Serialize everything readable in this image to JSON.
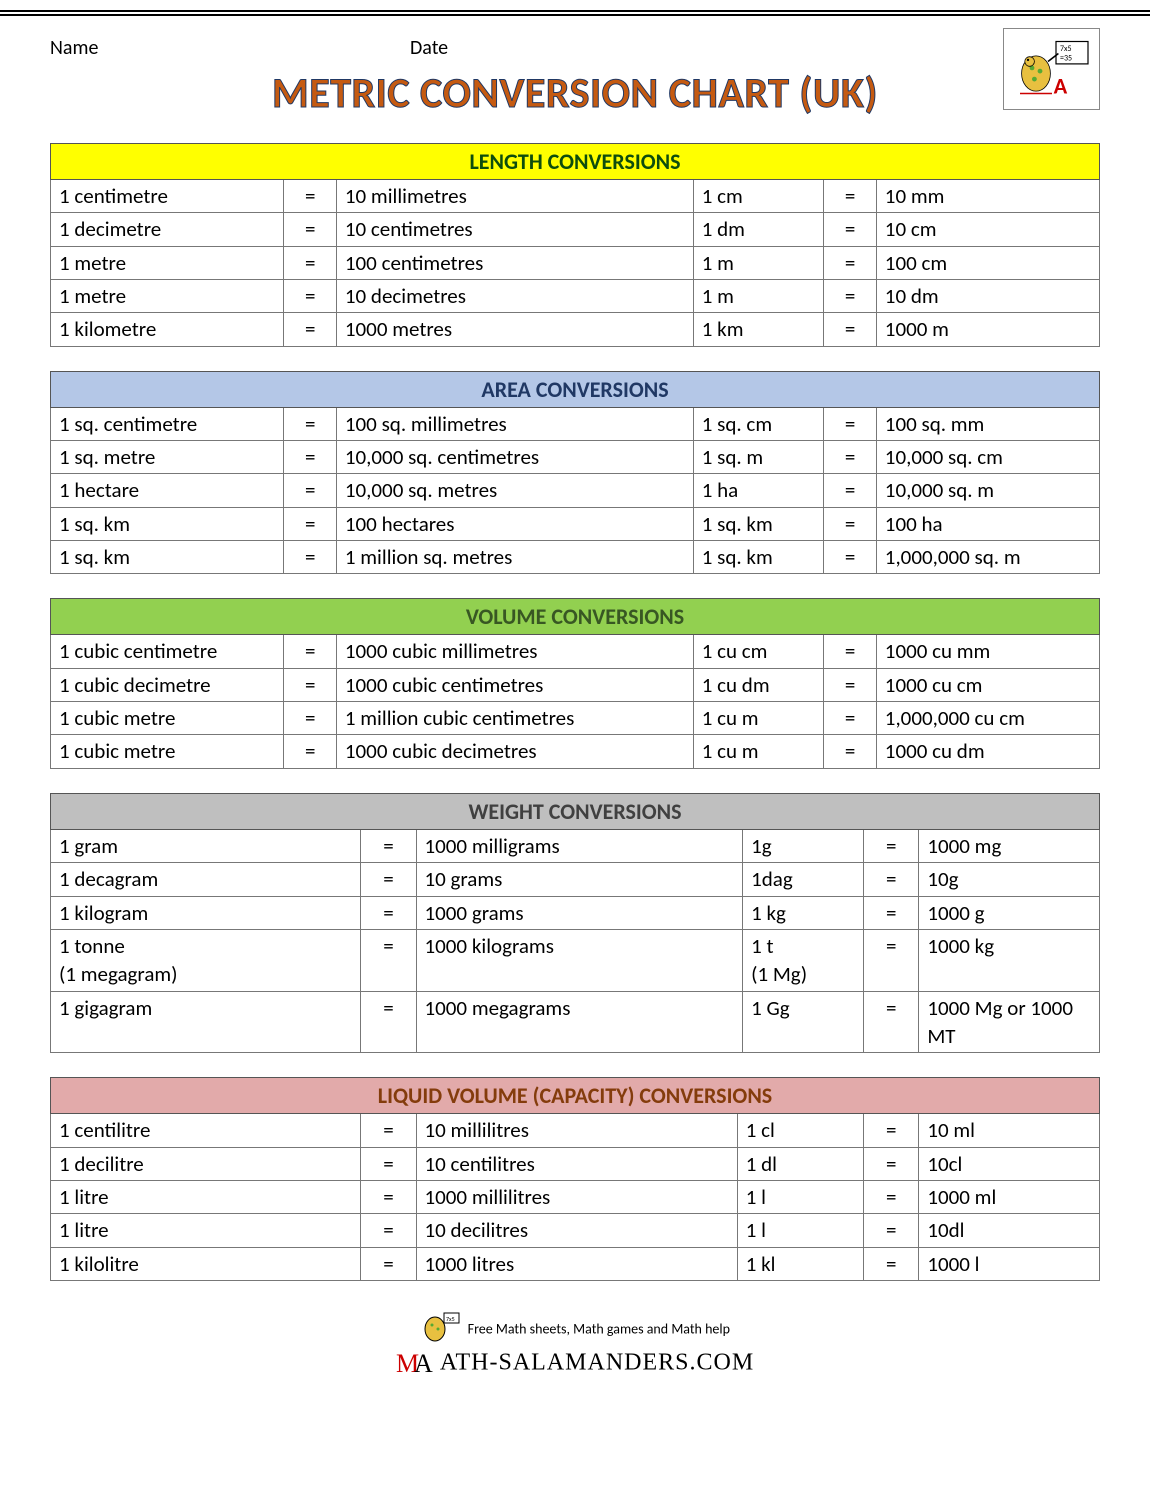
{
  "header": {
    "name_label": "Name",
    "date_label": "Date"
  },
  "title": "METRIC CONVERSION CHART (UK)",
  "colors": {
    "title_fill": "#c55a11",
    "title_stroke": "#203864",
    "length_header_bg": "#ffff00",
    "length_header_text": "#0d4d0d",
    "area_header_bg": "#b4c7e7",
    "area_header_text": "#203864",
    "volume_header_bg": "#92d050",
    "volume_header_text": "#385723",
    "weight_header_bg": "#bfbfbf",
    "weight_header_text": "#404040",
    "liquid_header_bg": "#e2aaaa",
    "liquid_header_text": "#843c0c",
    "border": "#555555"
  },
  "tables": [
    {
      "id": "length",
      "header": "LENGTH CONVERSIONS",
      "header_bg_key": "length_header_bg",
      "header_text_key": "length_header_text",
      "width_class": "",
      "rows": [
        [
          "1 centimetre",
          "=",
          "10 millimetres",
          "1 cm",
          "=",
          "10 mm"
        ],
        [
          "1 decimetre",
          "=",
          "10 centimetres",
          "1 dm",
          "=",
          "10 cm"
        ],
        [
          "1 metre",
          "=",
          "100 centimetres",
          "1 m",
          "=",
          "100 cm"
        ],
        [
          "1 metre",
          "=",
          "10 decimetres",
          "1 m",
          "=",
          "10 dm"
        ],
        [
          "1 kilometre",
          "=",
          "1000 metres",
          "1 km",
          "=",
          "1000 m"
        ]
      ]
    },
    {
      "id": "area",
      "header": "AREA CONVERSIONS",
      "header_bg_key": "area_header_bg",
      "header_text_key": "area_header_text",
      "width_class": "",
      "rows": [
        [
          "1 sq. centimetre",
          "=",
          "100 sq. millimetres",
          "1 sq. cm",
          "=",
          "100 sq. mm"
        ],
        [
          "1 sq. metre",
          "=",
          "10,000 sq. centimetres",
          "1 sq. m",
          "=",
          "10,000 sq. cm"
        ],
        [
          "1 hectare",
          "=",
          "10,000 sq. metres",
          "1 ha",
          "=",
          "10,000 sq. m"
        ],
        [
          "1 sq. km",
          "=",
          "100 hectares",
          "1 sq. km",
          "=",
          "100 ha"
        ],
        [
          "1 sq. km",
          "=",
          "1 million sq. metres",
          "1 sq. km",
          "=",
          "1,000,000 sq. m"
        ]
      ]
    },
    {
      "id": "volume",
      "header": "VOLUME CONVERSIONS",
      "header_bg_key": "volume_header_bg",
      "header_text_key": "volume_header_text",
      "width_class": "",
      "rows": [
        [
          "1 cubic centimetre",
          "=",
          "1000 cubic millimetres",
          "1 cu cm",
          "=",
          "1000 cu mm"
        ],
        [
          "1 cubic decimetre",
          "=",
          "1000 cubic centimetres",
          "1 cu dm",
          "=",
          "1000 cu cm"
        ],
        [
          "1 cubic metre",
          "=",
          "1 million cubic centimetres",
          "1 cu m",
          "=",
          "1,000,000 cu cm"
        ],
        [
          "1 cubic metre",
          "=",
          "1000 cubic decimetres",
          "1 cu m",
          "=",
          "1000 cu dm"
        ]
      ]
    },
    {
      "id": "weight",
      "header": "WEIGHT CONVERSIONS",
      "header_bg_key": "weight_header_bg",
      "header_text_key": "weight_header_text",
      "width_class": "weight",
      "rows": [
        [
          "1 gram",
          "=",
          "1000 milligrams",
          "1g",
          "=",
          "1000 mg"
        ],
        [
          "1 decagram",
          "=",
          "10 grams",
          "1dag",
          "=",
          "10g"
        ],
        [
          "1 kilogram",
          "=",
          "1000 grams",
          "1 kg",
          "=",
          "1000 g"
        ],
        [
          "1 tonne\n(1 megagram)",
          "=",
          "1000 kilograms",
          "1 t\n(1 Mg)",
          "=",
          "1000 kg"
        ],
        [
          "1 gigagram",
          "=",
          "1000 megagrams",
          "1 Gg",
          "=",
          "1000 Mg or 1000 MT"
        ]
      ]
    },
    {
      "id": "liquid",
      "header": "LIQUID VOLUME (CAPACITY) CONVERSIONS",
      "header_bg_key": "liquid_header_bg",
      "header_text_key": "liquid_header_text",
      "width_class": "liquid",
      "rows": [
        [
          "1 centilitre",
          "=",
          "10 millilitres",
          "1 cl",
          "=",
          "10 ml"
        ],
        [
          "1 decilitre",
          "=",
          "10 centilitres",
          "1 dl",
          "=",
          "10cl"
        ],
        [
          "1 litre",
          "=",
          "1000 millilitres",
          "1 l",
          "=",
          "1000 ml"
        ],
        [
          "1 litre",
          "=",
          "10 decilitres",
          "1 l",
          "=",
          "10dl"
        ],
        [
          "1 kilolitre",
          "=",
          "1000 litres",
          "1 kl",
          "=",
          "1000 l"
        ]
      ]
    }
  ],
  "footer": {
    "line1": "Free Math sheets, Math games and Math help",
    "line2": "ATH-SALAMANDERS.COM"
  }
}
